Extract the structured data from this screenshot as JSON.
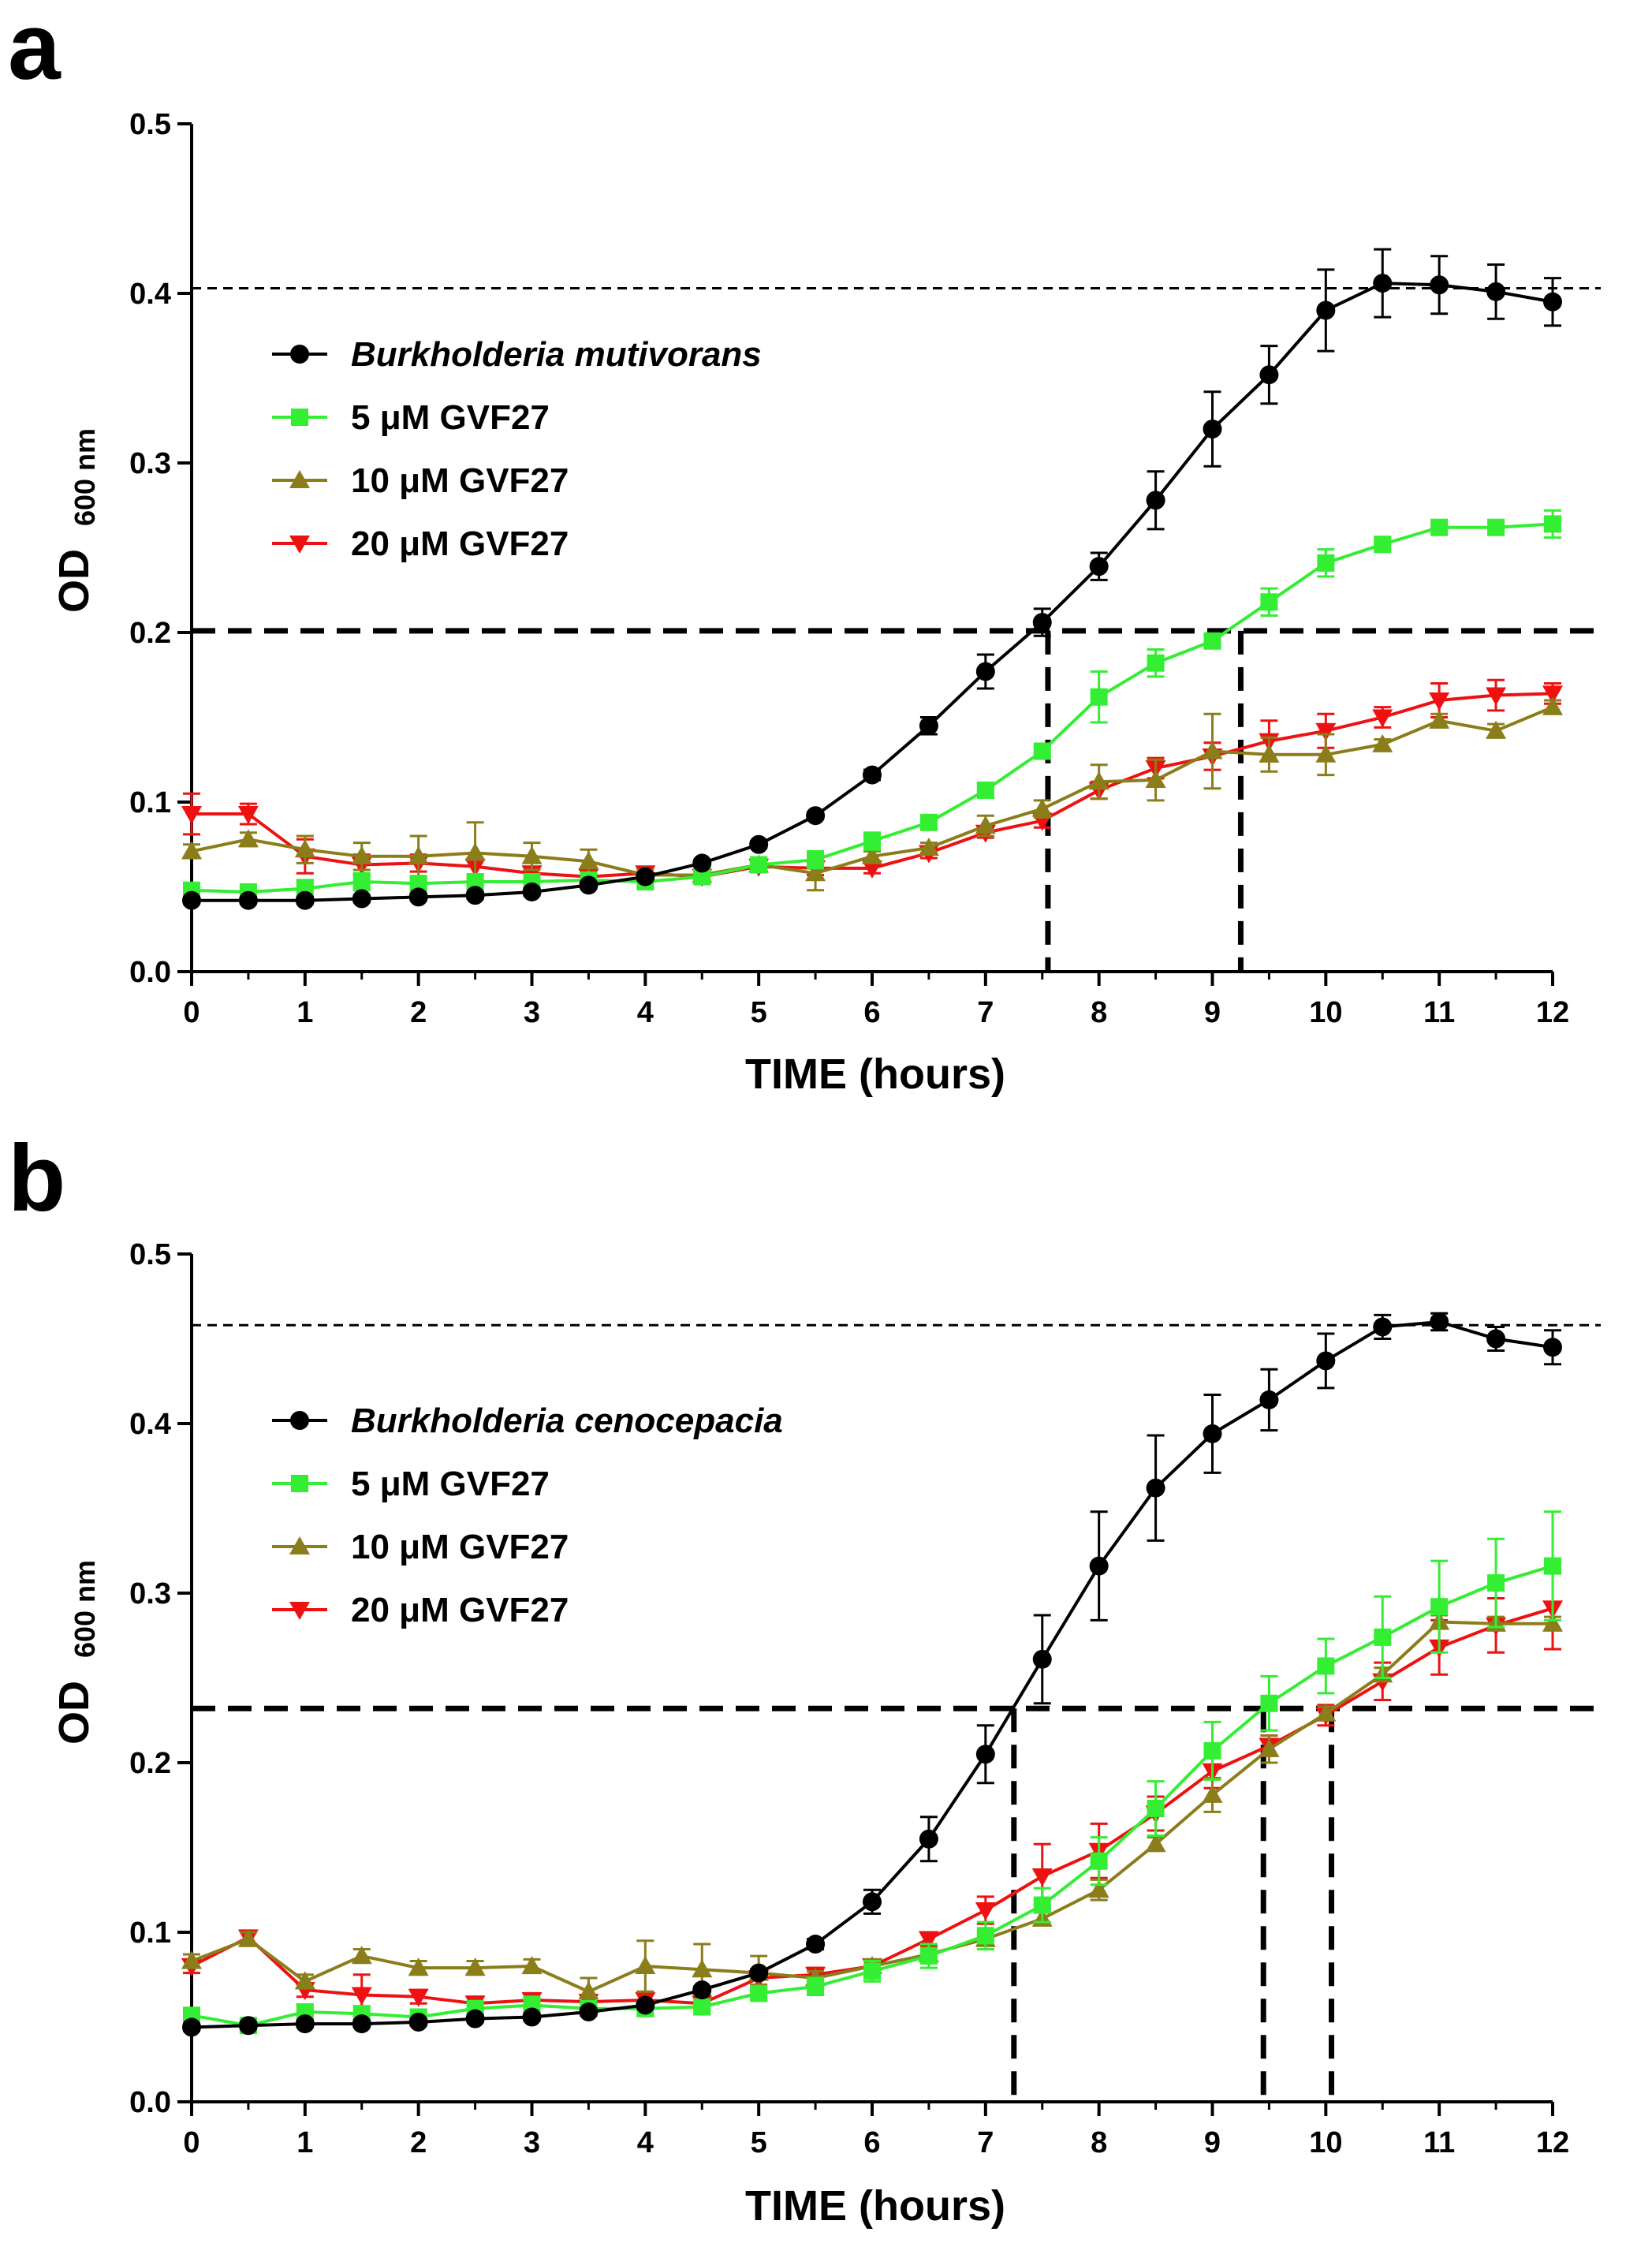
{
  "chart_data": [
    {
      "panel": "a",
      "type": "line",
      "xlabel": "TIME (hours)",
      "ylabel_main": "OD",
      "ylabel_sub": "600 nm",
      "xlim": [
        0,
        12
      ],
      "ylim": [
        0,
        0.5
      ],
      "xticks": [
        "0",
        "1",
        "2",
        "3",
        "4",
        "5",
        "6",
        "7",
        "8",
        "9",
        "10",
        "11",
        "12"
      ],
      "yticks": [
        "0.0",
        "0.1",
        "0.2",
        "0.3",
        "0.4",
        "0.5"
      ],
      "x": [
        0,
        0.5,
        1,
        1.5,
        2,
        2.5,
        3,
        3.5,
        4,
        4.5,
        5,
        5.5,
        6,
        6.5,
        7,
        7.5,
        8,
        8.5,
        9,
        9.5,
        10,
        10.5,
        11,
        11.5,
        12
      ],
      "series": [
        {
          "name": "Burkholderia mutivorans",
          "color": "#000000",
          "marker": "circle",
          "italic": true,
          "values": [
            0.042,
            0.042,
            0.042,
            0.043,
            0.044,
            0.045,
            0.047,
            0.051,
            0.056,
            0.064,
            0.075,
            0.092,
            0.116,
            0.145,
            0.177,
            0.206,
            0.239,
            0.278,
            0.32,
            0.352,
            0.39,
            0.406,
            0.405,
            0.401,
            0.395
          ],
          "errors": [
            0.002,
            0.002,
            0.002,
            0.002,
            0.002,
            0.002,
            0.002,
            0.002,
            0.002,
            0.002,
            0.002,
            0.002,
            0.003,
            0.005,
            0.01,
            0.008,
            0.008,
            0.017,
            0.022,
            0.017,
            0.024,
            0.02,
            0.017,
            0.016,
            0.014
          ]
        },
        {
          "name": "5 μM GVF27",
          "color": "#33ee33",
          "marker": "square",
          "italic": false,
          "values": [
            0.048,
            0.047,
            0.049,
            0.053,
            0.052,
            0.053,
            0.053,
            0.054,
            0.053,
            0.056,
            0.063,
            0.066,
            0.077,
            0.088,
            0.107,
            0.13,
            0.162,
            0.182,
            0.195,
            0.218,
            0.241,
            0.252,
            0.262,
            0.262,
            0.264
          ],
          "errors": [
            0.004,
            0.003,
            0.005,
            0.005,
            0.004,
            0.004,
            0.004,
            0.004,
            0.003,
            0.004,
            0.004,
            0.005,
            0.005,
            0.004,
            0.004,
            0.003,
            0.015,
            0.008,
            0.004,
            0.008,
            0.008,
            0.003,
            0.003,
            0.003,
            0.008
          ]
        },
        {
          "name": "10 μM GVF27",
          "color": "#8b7d1a",
          "marker": "triangle-up",
          "italic": false,
          "values": [
            0.071,
            0.078,
            0.072,
            0.068,
            0.068,
            0.07,
            0.068,
            0.065,
            0.057,
            0.057,
            0.063,
            0.058,
            0.068,
            0.073,
            0.086,
            0.096,
            0.112,
            0.113,
            0.13,
            0.128,
            0.128,
            0.134,
            0.148,
            0.142,
            0.156
          ],
          "errors": [
            0.004,
            0.004,
            0.008,
            0.008,
            0.012,
            0.018,
            0.008,
            0.007,
            0.003,
            0.003,
            0.003,
            0.01,
            0.003,
            0.003,
            0.006,
            0.005,
            0.01,
            0.012,
            0.022,
            0.01,
            0.012,
            0.003,
            0.004,
            0.004,
            0.004
          ]
        },
        {
          "name": "20 μM GVF27",
          "color": "#ee1111",
          "marker": "triangle-down",
          "italic": false,
          "values": [
            0.093,
            0.093,
            0.068,
            0.063,
            0.064,
            0.062,
            0.058,
            0.056,
            0.058,
            0.056,
            0.062,
            0.061,
            0.061,
            0.07,
            0.082,
            0.089,
            0.107,
            0.12,
            0.127,
            0.136,
            0.142,
            0.15,
            0.16,
            0.163,
            0.164
          ],
          "errors": [
            0.012,
            0.006,
            0.01,
            0.006,
            0.005,
            0.005,
            0.003,
            0.003,
            0.003,
            0.003,
            0.003,
            0.004,
            0.003,
            0.003,
            0.003,
            0.004,
            0.005,
            0.006,
            0.008,
            0.012,
            0.01,
            0.006,
            0.01,
            0.009,
            0.006
          ]
        }
      ],
      "ref_h_dotted": 0.403,
      "ref_h_dashed": 0.201,
      "ref_v_dashed": [
        7.55,
        9.25
      ]
    },
    {
      "panel": "b",
      "type": "line",
      "xlabel": "TIME (hours)",
      "ylabel_main": "OD",
      "ylabel_sub": "600 nm",
      "xlim": [
        0,
        12
      ],
      "ylim": [
        0,
        0.5
      ],
      "xticks": [
        "0",
        "1",
        "2",
        "3",
        "4",
        "5",
        "6",
        "7",
        "8",
        "9",
        "10",
        "11",
        "12"
      ],
      "yticks": [
        "0.0",
        "0.1",
        "0.2",
        "0.3",
        "0.4",
        "0.5"
      ],
      "x": [
        0,
        0.5,
        1,
        1.5,
        2,
        2.5,
        3,
        3.5,
        4,
        4.5,
        5,
        5.5,
        6,
        6.5,
        7,
        7.5,
        8,
        8.5,
        9,
        9.5,
        10,
        10.5,
        11,
        11.5,
        12
      ],
      "series": [
        {
          "name": "Burkholderia cenocepacia",
          "color": "#000000",
          "marker": "circle",
          "italic": true,
          "values": [
            0.044,
            0.045,
            0.046,
            0.046,
            0.047,
            0.049,
            0.05,
            0.053,
            0.057,
            0.066,
            0.076,
            0.093,
            0.118,
            0.155,
            0.205,
            0.261,
            0.316,
            0.362,
            0.394,
            0.414,
            0.437,
            0.457,
            0.46,
            0.45,
            0.445
          ],
          "errors": [
            0.002,
            0.002,
            0.002,
            0.002,
            0.002,
            0.002,
            0.002,
            0.002,
            0.002,
            0.002,
            0.002,
            0.003,
            0.007,
            0.013,
            0.017,
            0.026,
            0.032,
            0.031,
            0.023,
            0.018,
            0.016,
            0.007,
            0.005,
            0.007,
            0.01
          ]
        },
        {
          "name": "5 μM GVF27",
          "color": "#33ee33",
          "marker": "square",
          "italic": false,
          "values": [
            0.051,
            0.045,
            0.053,
            0.052,
            0.05,
            0.055,
            0.057,
            0.055,
            0.055,
            0.056,
            0.064,
            0.068,
            0.077,
            0.086,
            0.098,
            0.116,
            0.142,
            0.173,
            0.207,
            0.235,
            0.257,
            0.274,
            0.292,
            0.306,
            0.316
          ],
          "errors": [
            0.004,
            0.004,
            0.004,
            0.004,
            0.004,
            0.004,
            0.005,
            0.004,
            0.004,
            0.004,
            0.004,
            0.005,
            0.006,
            0.007,
            0.008,
            0.01,
            0.014,
            0.016,
            0.017,
            0.016,
            0.016,
            0.024,
            0.027,
            0.026,
            0.032
          ]
        },
        {
          "name": "10 μM GVF27",
          "color": "#8b7d1a",
          "marker": "triangle-up",
          "italic": false,
          "values": [
            0.083,
            0.096,
            0.071,
            0.086,
            0.079,
            0.079,
            0.08,
            0.065,
            0.08,
            0.078,
            0.076,
            0.073,
            0.08,
            0.087,
            0.096,
            0.108,
            0.125,
            0.152,
            0.181,
            0.208,
            0.229,
            0.252,
            0.283,
            0.282,
            0.282
          ],
          "errors": [
            0.004,
            0.004,
            0.004,
            0.004,
            0.004,
            0.004,
            0.004,
            0.008,
            0.015,
            0.015,
            0.01,
            0.004,
            0.004,
            0.004,
            0.004,
            0.004,
            0.006,
            0.004,
            0.01,
            0.008,
            0.004,
            0.004,
            0.004,
            0.004,
            0.004
          ]
        },
        {
          "name": "20 μM GVF27",
          "color": "#ee1111",
          "marker": "triangle-down",
          "italic": false,
          "values": [
            0.08,
            0.097,
            0.066,
            0.063,
            0.062,
            0.058,
            0.06,
            0.059,
            0.06,
            0.058,
            0.073,
            0.075,
            0.08,
            0.096,
            0.113,
            0.133,
            0.148,
            0.17,
            0.195,
            0.21,
            0.228,
            0.248,
            0.268,
            0.281,
            0.291
          ],
          "errors": [
            0.004,
            0.004,
            0.004,
            0.012,
            0.004,
            0.004,
            0.004,
            0.004,
            0.004,
            0.004,
            0.004,
            0.004,
            0.004,
            0.004,
            0.008,
            0.019,
            0.016,
            0.01,
            0.01,
            0.006,
            0.006,
            0.011,
            0.016,
            0.016,
            0.024
          ]
        }
      ],
      "ref_h_dotted": 0.458,
      "ref_h_dashed": 0.232,
      "ref_v_dashed": [
        7.25,
        9.45,
        10.05
      ]
    }
  ]
}
